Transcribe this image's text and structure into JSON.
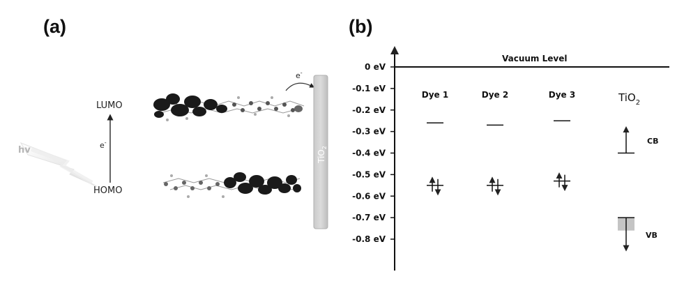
{
  "panel_a": {
    "label": "(a)",
    "hv": "hv",
    "lumo": "LUMO",
    "homo": "HOMO",
    "electron": "e",
    "electron_sup": "-",
    "inject_electron": "e",
    "inject_electron_sup": "-",
    "tio2_bar": "TiO",
    "tio2_bar_sub": "2"
  },
  "panel_b": {
    "label": "(b)",
    "vacuum_level": "Vacuum Level",
    "tio2_title": "TiO",
    "tio2_title_sub": "2",
    "cb": "CB",
    "vb": "VB"
  },
  "chart_data": {
    "type": "energy-level-diagram",
    "y_axis": {
      "ticks": [
        0,
        -0.1,
        -0.2,
        -0.3,
        -0.4,
        -0.5,
        -0.6,
        -0.7,
        -0.8
      ],
      "tick_labels": [
        "0 eV",
        "-0.1 eV",
        "-0.2 eV",
        "-0.3 eV",
        "-0.4 eV",
        "-0.5 eV",
        "-0.6 eV",
        "-0.7 eV",
        "-0.8 eV"
      ],
      "ylim": [
        -0.95,
        0.05
      ]
    },
    "columns": [
      {
        "name": "Dye 1",
        "lumo": -0.26,
        "homo": -0.55
      },
      {
        "name": "Dye 2",
        "lumo": -0.27,
        "homo": -0.55
      },
      {
        "name": "Dye 3",
        "lumo": -0.25,
        "homo": -0.53
      }
    ],
    "tio2": {
      "cb": -0.4,
      "vb": -0.7,
      "vb_band_bottom": -0.76
    }
  }
}
